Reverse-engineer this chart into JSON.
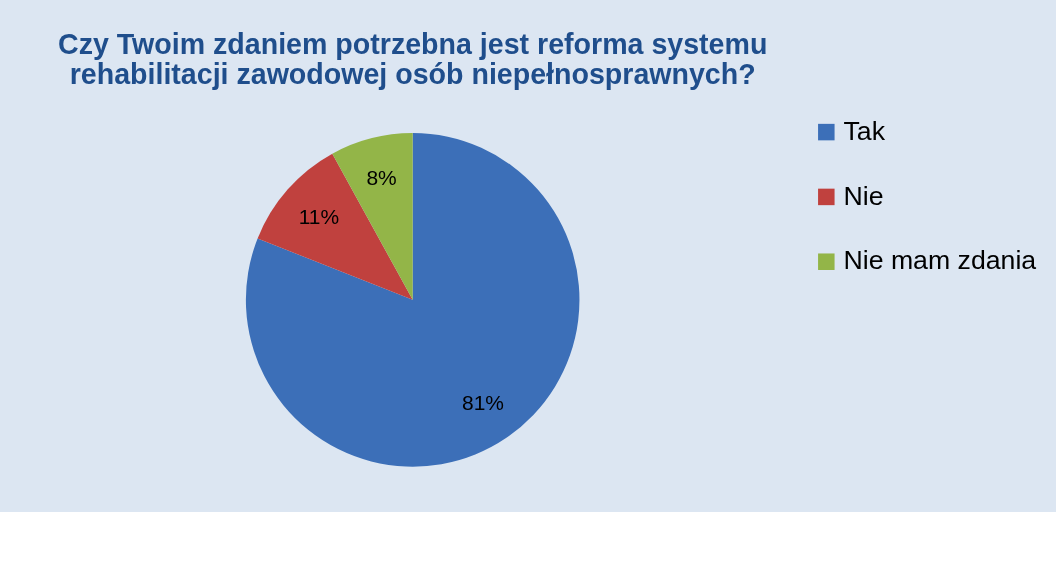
{
  "chart_data": {
    "type": "pie",
    "title": [
      "Czy Twoim zdaniem potrzebna jest reforma systemu",
      "rehabilitacji zawodowej osób niepełnosprawnych?"
    ],
    "categories": [
      "Tak",
      "Nie",
      "Nie mam zdania"
    ],
    "values": [
      81,
      11,
      8
    ],
    "colors": [
      "#3c6fb8",
      "#c0413e",
      "#93b548"
    ],
    "value_labels": [
      "81%",
      "11%",
      "8%"
    ],
    "legend": "right"
  }
}
